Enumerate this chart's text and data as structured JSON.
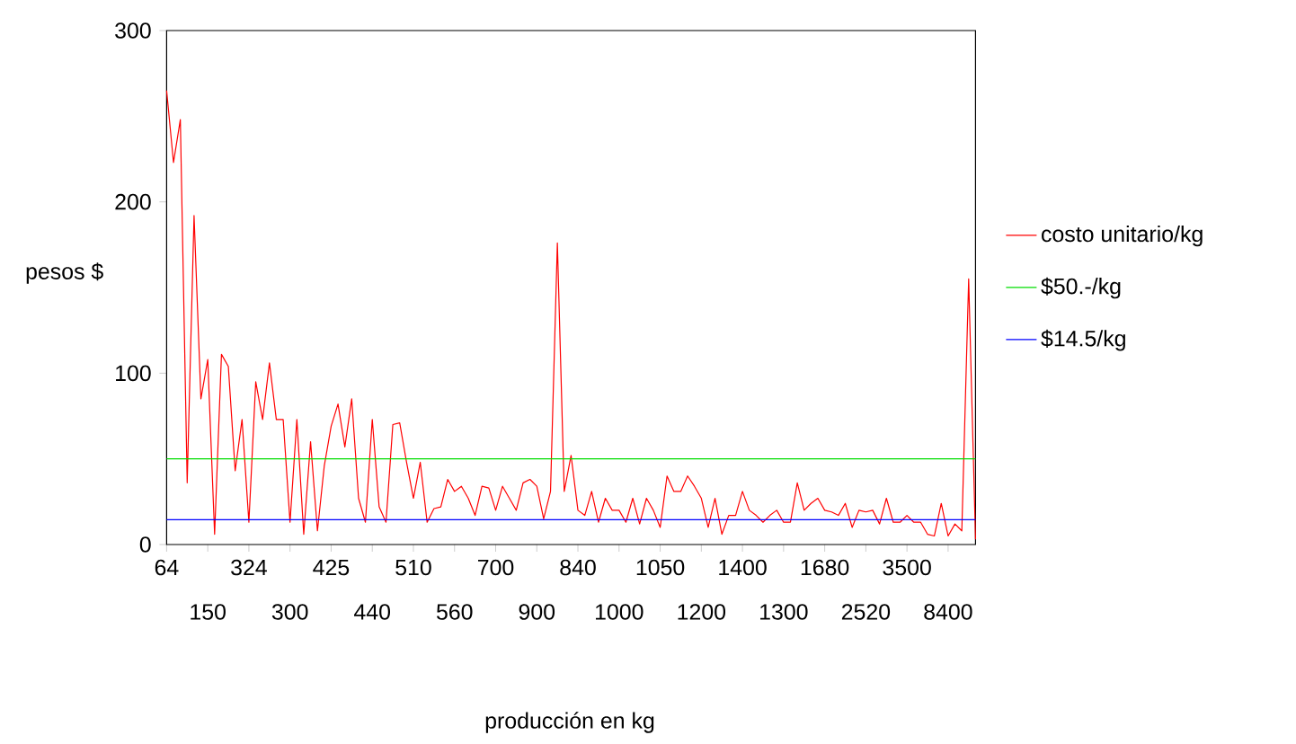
{
  "chart_data": {
    "type": "line",
    "xlabel": "producción en kg",
    "ylabel": "pesos $",
    "ylim": [
      0,
      300
    ],
    "yticks": [
      0,
      100,
      200,
      300
    ],
    "legend": "right",
    "grid": false,
    "categories": [
      "64",
      null,
      null,
      null,
      null,
      null,
      "150",
      null,
      null,
      null,
      null,
      null,
      "324",
      null,
      null,
      null,
      null,
      null,
      "300",
      null,
      null,
      null,
      null,
      null,
      "425",
      null,
      null,
      null,
      null,
      null,
      "440",
      null,
      null,
      null,
      null,
      null,
      "510",
      null,
      null,
      null,
      null,
      null,
      "560",
      null,
      null,
      null,
      null,
      null,
      "700",
      null,
      null,
      null,
      null,
      null,
      "900",
      null,
      null,
      null,
      null,
      null,
      "840",
      null,
      null,
      null,
      null,
      null,
      "1000",
      null,
      null,
      null,
      null,
      null,
      "1050",
      null,
      null,
      null,
      null,
      null,
      "1200",
      null,
      null,
      null,
      null,
      null,
      "1400",
      null,
      null,
      null,
      null,
      null,
      "1300",
      null,
      null,
      null,
      null,
      null,
      "1680",
      null,
      null,
      null,
      null,
      null,
      "2520",
      null,
      null,
      null,
      null,
      null,
      "3500",
      null,
      null,
      null,
      null,
      null,
      "8400",
      null,
      null,
      null,
      null
    ],
    "series": [
      {
        "name": "costo unitario/kg",
        "color": "#ff0000",
        "values": [
          265,
          223,
          248,
          36,
          192,
          85,
          108,
          6,
          111,
          104,
          43,
          73,
          13,
          95,
          73,
          106,
          73,
          73,
          13,
          73,
          6,
          60,
          8,
          46,
          69,
          82,
          57,
          85,
          27,
          13,
          73,
          22,
          13,
          70,
          71,
          48,
          27,
          48,
          13,
          21,
          22,
          38,
          31,
          34,
          27,
          17,
          34,
          33,
          20,
          34,
          27,
          20,
          36,
          38,
          34,
          15,
          31,
          176,
          31,
          52,
          20,
          17,
          31,
          13,
          27,
          20,
          20,
          13,
          27,
          12,
          27,
          20,
          10,
          40,
          31,
          31,
          40,
          34,
          27,
          10,
          27,
          6,
          17,
          17,
          31,
          20,
          17,
          13,
          17,
          20,
          13,
          13,
          36,
          20,
          24,
          27,
          20,
          19,
          17,
          24,
          10,
          20,
          19,
          20,
          12,
          27,
          13,
          13,
          17,
          13,
          13,
          6,
          5,
          24,
          5,
          12,
          8,
          155,
          3
        ]
      }
    ],
    "ref_lines": [
      {
        "axis": "y",
        "value": 50,
        "label": "$50.-/kg",
        "color": "#00dd00"
      },
      {
        "axis": "y",
        "value": 14.5,
        "label": "$14.5/kg",
        "color": "#0000ff"
      }
    ]
  }
}
